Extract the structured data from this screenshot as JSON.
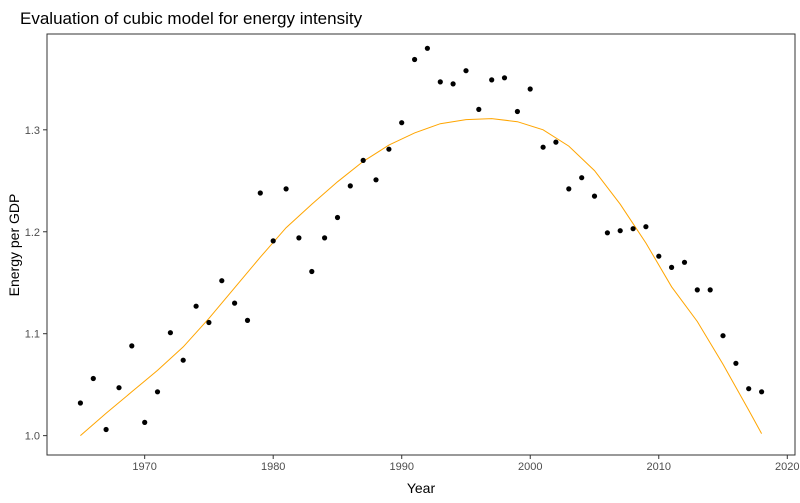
{
  "chart_data": {
    "type": "scatter",
    "title": "Evaluation of cubic model for energy intensity",
    "xlabel": "Year",
    "ylabel": "Energy per GDP",
    "xlim": [
      1962.4,
      2020.6
    ],
    "ylim": [
      0.981,
      1.394
    ],
    "xticks": [
      1970,
      1980,
      1990,
      2000,
      2010,
      2020
    ],
    "yticks": [
      1.0,
      1.1,
      1.2,
      1.3
    ],
    "grid": false,
    "legend": "none",
    "colors": {
      "points": "#000000",
      "fit": "#FFA500",
      "axis": "#333333",
      "tick": "#4d4d4d"
    },
    "series": [
      {
        "kind": "points",
        "x": [
          1965,
          1966,
          1967,
          1968,
          1969,
          1970,
          1971,
          1972,
          1973,
          1974,
          1975,
          1976,
          1977,
          1978,
          1979,
          1980,
          1981,
          1982,
          1983,
          1984,
          1985,
          1986,
          1987,
          1988,
          1989,
          1990,
          1991,
          1992,
          1993,
          1994,
          1995,
          1996,
          1997,
          1998,
          1999,
          2000,
          2001,
          2002,
          2003,
          2004,
          2005,
          2006,
          2007,
          2008,
          2009,
          2010,
          2011,
          2012,
          2013,
          2014,
          2015,
          2016,
          2017,
          2018
        ],
        "y": [
          1.032,
          1.056,
          1.006,
          1.047,
          1.088,
          1.013,
          1.043,
          1.101,
          1.074,
          1.127,
          1.111,
          1.152,
          1.13,
          1.113,
          1.238,
          1.191,
          1.242,
          1.194,
          1.161,
          1.194,
          1.214,
          1.245,
          1.27,
          1.251,
          1.281,
          1.307,
          1.369,
          1.38,
          1.347,
          1.345,
          1.358,
          1.32,
          1.349,
          1.351,
          1.318,
          1.34,
          1.283,
          1.288,
          1.242,
          1.253,
          1.235,
          1.199,
          1.201,
          1.203,
          1.205,
          1.176,
          1.165,
          1.17,
          1.143,
          1.143,
          1.098,
          1.071,
          1.046,
          1.043
        ]
      },
      {
        "kind": "fit",
        "x": [
          1965,
          1967,
          1969,
          1971,
          1973,
          1975,
          1977,
          1979,
          1981,
          1983,
          1985,
          1987,
          1989,
          1991,
          1993,
          1995,
          1997,
          1999,
          2001,
          2003,
          2005,
          2007,
          2009,
          2011,
          2013,
          2015,
          2017,
          2018
        ],
        "y": [
          1.0,
          1.022,
          1.043,
          1.064,
          1.087,
          1.115,
          1.145,
          1.175,
          1.204,
          1.227,
          1.249,
          1.269,
          1.285,
          1.297,
          1.306,
          1.31,
          1.311,
          1.308,
          1.3,
          1.284,
          1.26,
          1.227,
          1.189,
          1.146,
          1.112,
          1.07,
          1.025,
          1.002
        ]
      }
    ]
  }
}
